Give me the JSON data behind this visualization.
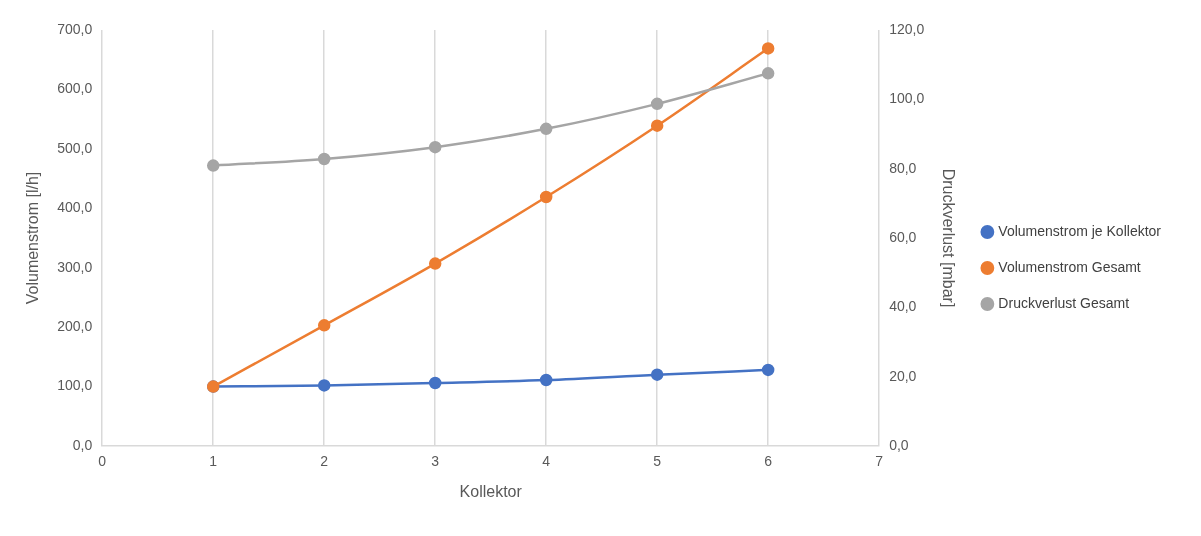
{
  "chart_data": {
    "type": "line",
    "xlabel": "Kollektor",
    "ylabel": "Volumenstrom [l/h]",
    "y2label": "Druckverlust [mbar]",
    "x": [
      1,
      2,
      3,
      4,
      5,
      6
    ],
    "xlim": [
      0,
      7
    ],
    "xticks": [
      0,
      1,
      2,
      3,
      4,
      5,
      6,
      7
    ],
    "ylim": [
      0,
      700
    ],
    "yticks": [
      {
        "value": 0,
        "label": "0,0"
      },
      {
        "value": 100,
        "label": "100,0"
      },
      {
        "value": 200,
        "label": "200,0"
      },
      {
        "value": 300,
        "label": "300,0"
      },
      {
        "value": 400,
        "label": "400,0"
      },
      {
        "value": 500,
        "label": "500,0"
      },
      {
        "value": 600,
        "label": "600,0"
      },
      {
        "value": 700,
        "label": "700,0"
      }
    ],
    "y2lim": [
      0,
      120
    ],
    "y2ticks": [
      {
        "value": 0,
        "label": "0,0"
      },
      {
        "value": 20,
        "label": "20,0"
      },
      {
        "value": 40,
        "label": "40,0"
      },
      {
        "value": 60,
        "label": "60,0"
      },
      {
        "value": 80,
        "label": "80,0"
      },
      {
        "value": 100,
        "label": "100,0"
      },
      {
        "value": 120,
        "label": "120,0"
      }
    ],
    "series": [
      {
        "name": "Volumenstrom je Kollektor",
        "color": "#4472c4",
        "values": [
          100,
          102,
          106,
          111,
          120,
          128
        ]
      },
      {
        "name": "Volumenstrom Gesamt",
        "color": "#ed7d31",
        "values": [
          100,
          203,
          307,
          419,
          539,
          669
        ]
      },
      {
        "name": "Druckverlust Gesamt",
        "color": "#a5a5a5",
        "axis": "y2",
        "values": [
          80.9,
          82.8,
          86.2,
          91.5,
          98.7,
          107.5
        ]
      }
    ],
    "grid": "x",
    "legend": "right",
    "marker": "circle",
    "line_style": "solid"
  }
}
